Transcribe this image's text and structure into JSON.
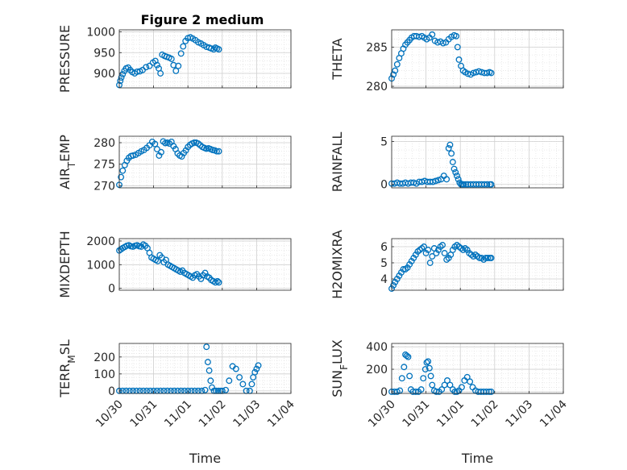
{
  "figure": {
    "title": "Figure 2 medium",
    "marker_color": "#0072BD"
  },
  "chart_data": [
    {
      "type": "scatter",
      "ylabel": "PRESSURE",
      "title": "Figure 2 medium",
      "xlabel": "",
      "yticks": [
        "900",
        "950",
        "1000"
      ],
      "ylim": [
        865,
        1005
      ],
      "yticks_v": [
        900,
        950,
        1000
      ],
      "x": [
        0.0,
        0.03,
        0.06,
        0.1,
        0.15,
        0.2,
        0.26,
        0.32,
        0.38,
        0.45,
        0.52,
        0.6,
        0.68,
        0.78,
        0.88,
        0.98,
        1.05,
        1.1,
        1.15,
        1.2,
        1.25,
        1.32,
        1.38,
        1.45,
        1.52,
        1.58,
        1.65,
        1.72,
        1.8,
        1.86,
        1.93,
        2.0,
        2.07,
        2.14,
        2.22,
        2.3,
        2.38,
        2.46,
        2.54,
        2.62,
        2.68,
        2.75,
        2.8,
        2.85,
        2.9
      ],
      "y": [
        872,
        882,
        890,
        898,
        906,
        912,
        914,
        908,
        903,
        900,
        904,
        905,
        908,
        915,
        918,
        926,
        930,
        920,
        912,
        900,
        945,
        942,
        940,
        938,
        935,
        920,
        906,
        918,
        948,
        965,
        978,
        985,
        987,
        984,
        980,
        975,
        972,
        968,
        964,
        962,
        960,
        958,
        962,
        960,
        958
      ]
    },
    {
      "type": "scatter",
      "ylabel": "THETA",
      "xlabel": "",
      "yticks": [
        "280",
        "285"
      ],
      "ylim": [
        279.8,
        287.2
      ],
      "yticks_v": [
        280,
        285
      ],
      "x": [
        0.0,
        0.05,
        0.1,
        0.16,
        0.22,
        0.28,
        0.34,
        0.4,
        0.46,
        0.52,
        0.58,
        0.65,
        0.72,
        0.8,
        0.88,
        0.95,
        1.02,
        1.1,
        1.18,
        1.26,
        1.34,
        1.42,
        1.5,
        1.58,
        1.66,
        1.74,
        1.82,
        1.88,
        1.92,
        1.96,
        2.02,
        2.08,
        2.14,
        2.22,
        2.3,
        2.38,
        2.46,
        2.54,
        2.62,
        2.7,
        2.78,
        2.85,
        2.9
      ],
      "y": [
        281.0,
        281.5,
        282.0,
        282.8,
        283.6,
        284.2,
        284.8,
        285.3,
        285.6,
        285.9,
        286.2,
        286.4,
        286.4,
        286.3,
        286.4,
        286.2,
        286.0,
        286.2,
        286.6,
        285.8,
        285.6,
        285.7,
        285.5,
        285.6,
        286.0,
        286.3,
        286.5,
        286.4,
        285.0,
        283.4,
        282.6,
        282.0,
        281.8,
        281.6,
        281.5,
        281.7,
        281.8,
        281.9,
        281.8,
        281.7,
        281.7,
        281.8,
        281.7
      ]
    },
    {
      "type": "scatter",
      "ylabel": "AIR_TEMP",
      "xlabel": "",
      "yticks": [
        "270",
        "275",
        "280"
      ],
      "ylim": [
        269.5,
        281.5
      ],
      "yticks_v": [
        270,
        275,
        280
      ],
      "x": [
        0.0,
        0.05,
        0.1,
        0.16,
        0.22,
        0.28,
        0.34,
        0.4,
        0.48,
        0.56,
        0.64,
        0.72,
        0.8,
        0.88,
        0.96,
        1.04,
        1.1,
        1.16,
        1.22,
        1.28,
        1.34,
        1.4,
        1.46,
        1.52,
        1.58,
        1.64,
        1.7,
        1.76,
        1.82,
        1.88,
        1.94,
        2.0,
        2.06,
        2.12,
        2.18,
        2.24,
        2.3,
        2.36,
        2.42,
        2.48,
        2.54,
        2.6,
        2.66,
        2.72,
        2.78,
        2.84,
        2.9
      ],
      "y": [
        270.2,
        272.0,
        273.5,
        274.8,
        275.8,
        276.5,
        276.9,
        277.0,
        277.2,
        277.6,
        278.0,
        278.3,
        278.8,
        279.4,
        280.2,
        279.7,
        278.5,
        277.0,
        277.8,
        280.3,
        279.9,
        280.0,
        279.8,
        280.2,
        279.2,
        278.5,
        277.5,
        277.0,
        276.8,
        277.6,
        278.2,
        279.0,
        279.5,
        279.8,
        280.0,
        280.0,
        279.8,
        279.4,
        279.0,
        278.8,
        278.6,
        278.7,
        278.5,
        278.3,
        278.2,
        278.0,
        278.0
      ]
    },
    {
      "type": "scatter",
      "ylabel": "RAINFALL",
      "xlabel": "",
      "yticks": [
        "0",
        "5"
      ],
      "ylim": [
        -0.4,
        5.6
      ],
      "yticks_v": [
        0,
        5
      ],
      "x": [
        0.0,
        0.08,
        0.16,
        0.24,
        0.32,
        0.4,
        0.48,
        0.56,
        0.64,
        0.72,
        0.8,
        0.88,
        0.96,
        1.04,
        1.12,
        1.2,
        1.28,
        1.36,
        1.44,
        1.52,
        1.6,
        1.66,
        1.7,
        1.74,
        1.78,
        1.82,
        1.86,
        1.9,
        1.94,
        1.98,
        2.02,
        2.06,
        2.1,
        2.16,
        2.22,
        2.3,
        2.38,
        2.46,
        2.54,
        2.62,
        2.7,
        2.78,
        2.86,
        2.9
      ],
      "y": [
        0.1,
        0.1,
        0.2,
        0.1,
        0.1,
        0.2,
        0.1,
        0.2,
        0.2,
        0.1,
        0.3,
        0.3,
        0.4,
        0.3,
        0.3,
        0.3,
        0.4,
        0.5,
        0.6,
        1.0,
        0.6,
        4.2,
        4.6,
        3.6,
        2.6,
        1.8,
        1.4,
        1.0,
        0.6,
        0.2,
        0.0,
        0.0,
        0.0,
        0.0,
        0.0,
        0.0,
        0.0,
        0.0,
        0.0,
        0.0,
        0.0,
        0.0,
        0.0,
        0.0
      ]
    },
    {
      "type": "scatter",
      "ylabel": "MIXDEPTH",
      "xlabel": "",
      "yticks": [
        "0",
        "1000",
        "2000"
      ],
      "ylim": [
        -80,
        2100
      ],
      "yticks_v": [
        0,
        1000,
        2000
      ],
      "x": [
        0.0,
        0.05,
        0.1,
        0.16,
        0.22,
        0.28,
        0.34,
        0.4,
        0.46,
        0.52,
        0.58,
        0.64,
        0.7,
        0.76,
        0.82,
        0.88,
        0.94,
        1.0,
        1.06,
        1.12,
        1.18,
        1.24,
        1.3,
        1.36,
        1.42,
        1.48,
        1.54,
        1.6,
        1.66,
        1.72,
        1.78,
        1.84,
        1.9,
        1.96,
        2.02,
        2.08,
        2.14,
        2.2,
        2.26,
        2.32,
        2.38,
        2.44,
        2.5,
        2.56,
        2.62,
        2.68,
        2.74,
        2.8,
        2.86,
        2.9
      ],
      "y": [
        1600,
        1650,
        1700,
        1750,
        1800,
        1820,
        1780,
        1760,
        1800,
        1820,
        1780,
        1760,
        1850,
        1800,
        1700,
        1500,
        1300,
        1250,
        1200,
        1150,
        1400,
        1300,
        1100,
        1200,
        1000,
        950,
        900,
        850,
        800,
        750,
        700,
        750,
        650,
        600,
        550,
        500,
        450,
        550,
        600,
        500,
        400,
        550,
        650,
        500,
        450,
        350,
        300,
        250,
        300,
        250
      ]
    },
    {
      "type": "scatter",
      "ylabel": "H2OMIXRA",
      "xlabel": "",
      "yticks": [
        "4",
        "5",
        "6"
      ],
      "ylim": [
        3.3,
        6.5
      ],
      "yticks_v": [
        4,
        5,
        6
      ],
      "x": [
        0.0,
        0.05,
        0.1,
        0.16,
        0.22,
        0.28,
        0.34,
        0.4,
        0.46,
        0.52,
        0.58,
        0.64,
        0.7,
        0.76,
        0.82,
        0.88,
        0.94,
        1.0,
        1.06,
        1.12,
        1.18,
        1.24,
        1.3,
        1.36,
        1.42,
        1.48,
        1.54,
        1.6,
        1.66,
        1.72,
        1.78,
        1.84,
        1.9,
        1.96,
        2.02,
        2.08,
        2.14,
        2.2,
        2.26,
        2.32,
        2.38,
        2.44,
        2.5,
        2.56,
        2.62,
        2.68,
        2.74,
        2.8,
        2.86,
        2.9
      ],
      "y": [
        3.4,
        3.6,
        3.8,
        4.0,
        4.2,
        4.4,
        4.6,
        4.6,
        4.7,
        4.9,
        5.1,
        5.3,
        5.5,
        5.7,
        5.8,
        5.9,
        6.0,
        5.6,
        5.8,
        5.0,
        5.4,
        5.9,
        5.6,
        5.8,
        6.0,
        6.1,
        5.6,
        5.2,
        5.3,
        5.5,
        5.8,
        6.0,
        6.1,
        6.0,
        5.9,
        5.8,
        5.9,
        5.8,
        5.6,
        5.5,
        5.4,
        5.5,
        5.4,
        5.3,
        5.3,
        5.2,
        5.3,
        5.3,
        5.3,
        5.3
      ]
    },
    {
      "type": "scatter",
      "ylabel": "TERR_MSL",
      "xlabel": "Time",
      "xticks": [
        "10/30",
        "10/31",
        "11/01",
        "11/02",
        "11/03",
        "11/04"
      ],
      "xlim": [
        0,
        5
      ],
      "yticks": [
        "0",
        "100",
        "200"
      ],
      "ylim": [
        -15,
        280
      ],
      "yticks_v": [
        0,
        100,
        200
      ],
      "x": [
        0.0,
        0.1,
        0.2,
        0.3,
        0.4,
        0.5,
        0.6,
        0.7,
        0.8,
        0.9,
        1.0,
        1.1,
        1.2,
        1.3,
        1.4,
        1.5,
        1.6,
        1.7,
        1.8,
        1.9,
        2.0,
        2.1,
        2.2,
        2.3,
        2.4,
        2.5,
        2.54,
        2.58,
        2.62,
        2.66,
        2.7,
        2.76,
        2.82,
        2.88,
        2.94,
        3.0,
        3.1,
        3.2,
        3.3,
        3.4,
        3.5,
        3.6,
        3.7,
        3.8,
        3.86,
        3.9,
        3.95,
        4.0,
        4.05
      ],
      "y": [
        0,
        0,
        0,
        0,
        0,
        0,
        0,
        0,
        0,
        0,
        0,
        0,
        0,
        0,
        0,
        0,
        0,
        0,
        0,
        0,
        0,
        0,
        0,
        0,
        0,
        5,
        260,
        170,
        120,
        60,
        20,
        0,
        0,
        0,
        0,
        0,
        5,
        60,
        145,
        130,
        80,
        40,
        0,
        0,
        40,
        80,
        110,
        130,
        150
      ]
    },
    {
      "type": "scatter",
      "ylabel": "SUN_FLUX",
      "xlabel": "Time",
      "xticks": [
        "10/30",
        "10/31",
        "11/01",
        "11/02",
        "11/03",
        "11/04"
      ],
      "xlim": [
        0,
        5
      ],
      "yticks": [
        "0",
        "200",
        "400"
      ],
      "ylim": [
        -15,
        430
      ],
      "yticks_v": [
        0,
        200,
        400
      ],
      "x": [
        0.0,
        0.08,
        0.16,
        0.24,
        0.3,
        0.36,
        0.4,
        0.44,
        0.48,
        0.52,
        0.56,
        0.62,
        0.7,
        0.78,
        0.86,
        0.92,
        0.98,
        1.02,
        1.06,
        1.1,
        1.14,
        1.18,
        1.24,
        1.3,
        1.38,
        1.46,
        1.54,
        1.62,
        1.7,
        1.78,
        1.84,
        1.9,
        1.96,
        2.04,
        2.12,
        2.2,
        2.28,
        2.36,
        2.44,
        2.52,
        2.6,
        2.68,
        2.76,
        2.84,
        2.9
      ],
      "y": [
        0,
        0,
        0,
        10,
        120,
        220,
        330,
        320,
        310,
        140,
        20,
        0,
        0,
        0,
        20,
        120,
        200,
        260,
        270,
        210,
        140,
        60,
        10,
        0,
        0,
        20,
        60,
        100,
        60,
        20,
        0,
        0,
        10,
        40,
        100,
        130,
        90,
        40,
        10,
        0,
        0,
        0,
        0,
        0,
        0
      ]
    }
  ]
}
